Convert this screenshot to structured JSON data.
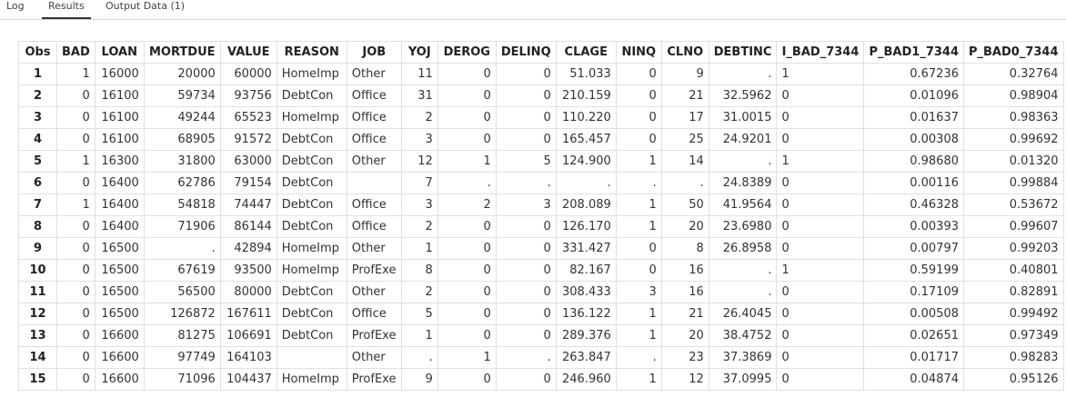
{
  "tabs": [
    "Log",
    "Results",
    "Output Data (1)"
  ],
  "table": {
    "columns": [
      "Obs",
      "BAD",
      "LOAN",
      "MORTDUE",
      "VALUE",
      "REASON",
      "JOB",
      "YOJ",
      "DEROG",
      "DELINQ",
      "CLAGE",
      "NINQ",
      "CLNO",
      "DEBTINC",
      "I_BAD_7344",
      "P_BAD1_7344",
      "P_BAD0_7344"
    ],
    "rows": [
      [
        "1",
        "1",
        "16000",
        "20000",
        "60000",
        "HomeImp",
        "Other",
        "11",
        "0",
        "0",
        "51.033",
        "0",
        "9",
        ".",
        "1",
        "0.67236",
        "0.32764"
      ],
      [
        "2",
        "0",
        "16100",
        "59734",
        "93756",
        "DebtCon",
        "Office",
        "31",
        "0",
        "0",
        "210.159",
        "0",
        "21",
        "32.5962",
        "0",
        "0.01096",
        "0.98904"
      ],
      [
        "3",
        "0",
        "16100",
        "49244",
        "65523",
        "HomeImp",
        "Office",
        "2",
        "0",
        "0",
        "110.220",
        "0",
        "17",
        "31.0015",
        "0",
        "0.01637",
        "0.98363"
      ],
      [
        "4",
        "0",
        "16100",
        "68905",
        "91572",
        "DebtCon",
        "Office",
        "3",
        "0",
        "0",
        "165.457",
        "0",
        "25",
        "24.9201",
        "0",
        "0.00308",
        "0.99692"
      ],
      [
        "5",
        "1",
        "16300",
        "31800",
        "63000",
        "DebtCon",
        "Other",
        "12",
        "1",
        "5",
        "124.900",
        "1",
        "14",
        ".",
        "1",
        "0.98680",
        "0.01320"
      ],
      [
        "6",
        "0",
        "16400",
        "62786",
        "79154",
        "DebtCon",
        null,
        "7",
        ".",
        ".",
        ".",
        ".",
        ".",
        "24.8389",
        "0",
        "0.00116",
        "0.99884"
      ],
      [
        "7",
        "1",
        "16400",
        "54818",
        "74447",
        "DebtCon",
        "Office",
        "3",
        "2",
        "3",
        "208.089",
        "1",
        "50",
        "41.9564",
        "0",
        "0.46328",
        "0.53672"
      ],
      [
        "8",
        "0",
        "16400",
        "71906",
        "86144",
        "DebtCon",
        "Office",
        "2",
        "0",
        "0",
        "126.170",
        "1",
        "20",
        "23.6980",
        "0",
        "0.00393",
        "0.99607"
      ],
      [
        "9",
        "0",
        "16500",
        ".",
        "42894",
        "HomeImp",
        "Other",
        "1",
        "0",
        "0",
        "331.427",
        "0",
        "8",
        "26.8958",
        "0",
        "0.00797",
        "0.99203"
      ],
      [
        "10",
        "0",
        "16500",
        "67619",
        "93500",
        "HomeImp",
        "ProfExe",
        "8",
        "0",
        "0",
        "82.167",
        "0",
        "16",
        ".",
        "1",
        "0.59199",
        "0.40801"
      ],
      [
        "11",
        "0",
        "16500",
        "56500",
        "80000",
        "DebtCon",
        "Other",
        "2",
        "0",
        "0",
        "308.433",
        "3",
        "16",
        ".",
        "0",
        "0.17109",
        "0.82891"
      ],
      [
        "12",
        "0",
        "16500",
        "126872",
        "167611",
        "DebtCon",
        "Office",
        "5",
        "0",
        "0",
        "136.122",
        "1",
        "21",
        "26.4045",
        "0",
        "0.00508",
        "0.99492"
      ],
      [
        "13",
        "0",
        "16600",
        "81275",
        "106691",
        "DebtCon",
        "ProfExe",
        "1",
        "0",
        "0",
        "289.376",
        "1",
        "20",
        "38.4752",
        "0",
        "0.02651",
        "0.97349"
      ],
      [
        "14",
        "0",
        "16600",
        "97749",
        "164103",
        null,
        "Other",
        ".",
        "1",
        ".",
        "263.847",
        ".",
        "23",
        "37.3869",
        "0",
        "0.01717",
        "0.98283"
      ],
      [
        "15",
        "0",
        "16600",
        "71096",
        "104437",
        "HomeImp",
        "ProfExe",
        "9",
        "0",
        "0",
        "246.960",
        "1",
        "12",
        "37.0995",
        "0",
        "0.04874",
        "0.95126"
      ]
    ]
  }
}
